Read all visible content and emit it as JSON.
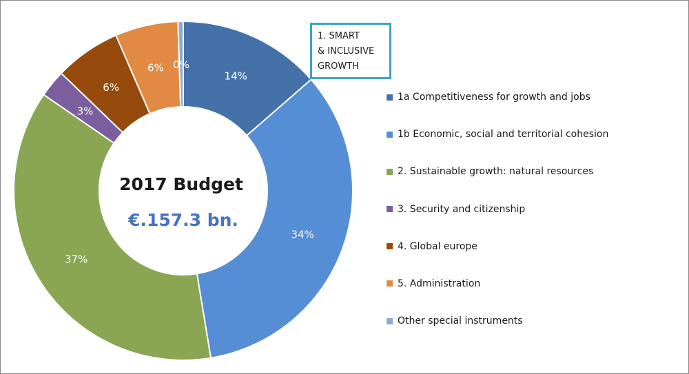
{
  "chart_data": {
    "type": "pie",
    "variant": "donut",
    "center_title": "2017 Budget",
    "center_value": "€.157.3 bn.",
    "slices": [
      {
        "name": "1a Competitiveness for growth and jobs",
        "value": 13.6,
        "label": "14%",
        "color": "#4472a8"
      },
      {
        "name": "1b Economic, social and territorial cohesion",
        "value": 33.8,
        "label": "34%",
        "color": "#558ed5"
      },
      {
        "name": "2. Sustainable growth: natural resources",
        "value": 37.2,
        "label": "37%",
        "color": "#8aa652"
      },
      {
        "name": "3. Security and citizenship",
        "value": 2.6,
        "label": "3%",
        "color": "#7b5e9e"
      },
      {
        "name": "4. Global europe",
        "value": 6.3,
        "label": "6%",
        "color": "#964b0c"
      },
      {
        "name": "5. Administration",
        "value": 6.0,
        "label": "6%",
        "color": "#e08a43"
      },
      {
        "name": "Other special instruments",
        "value": 0.5,
        "label": "0%",
        "color": "#92a9cf"
      }
    ],
    "callout": [
      "1. SMART",
      "& INCLUSIVE",
      "GROWTH"
    ],
    "legend_position": "right"
  }
}
